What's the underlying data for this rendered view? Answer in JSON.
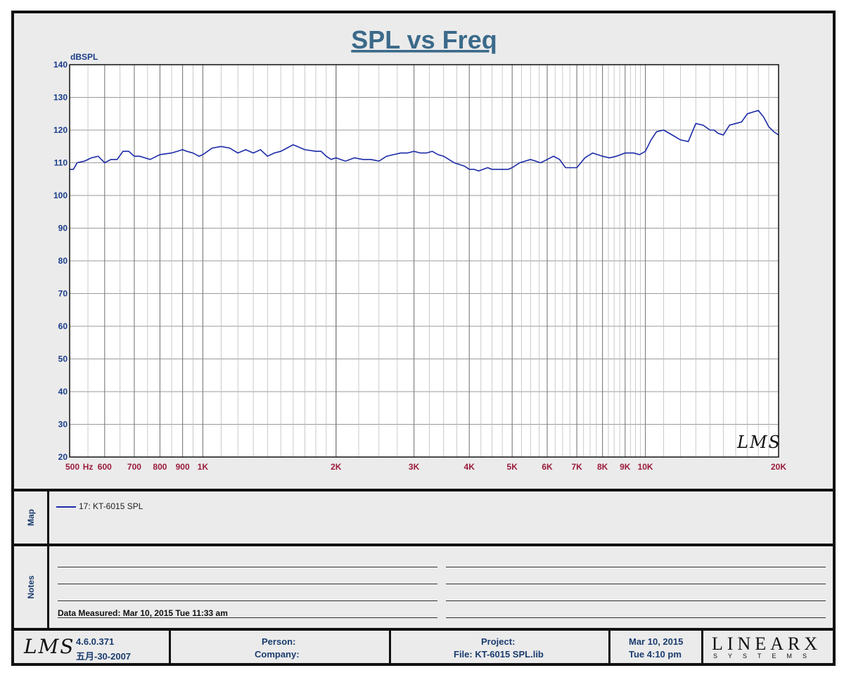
{
  "chart_data": {
    "type": "line",
    "title": "SPL vs Freq",
    "ylabel": "dBSPL",
    "xlabel": "",
    "x_scale": "log",
    "xlim": [
      500,
      20000
    ],
    "ylim": [
      20,
      140
    ],
    "y_ticks": [
      "140",
      "130",
      "120",
      "110",
      "100",
      "90",
      "80",
      "70",
      "60",
      "50",
      "40",
      "30",
      "20"
    ],
    "x_ticks": [
      {
        "label": "500",
        "value": 500
      },
      {
        "label": "Hz",
        "value": 550
      },
      {
        "label": "600",
        "value": 600
      },
      {
        "label": "700",
        "value": 700
      },
      {
        "label": "800",
        "value": 800
      },
      {
        "label": "900",
        "value": 900
      },
      {
        "label": "1K",
        "value": 1000
      },
      {
        "label": "2K",
        "value": 2000
      },
      {
        "label": "3K",
        "value": 3000
      },
      {
        "label": "4K",
        "value": 4000
      },
      {
        "label": "5K",
        "value": 5000
      },
      {
        "label": "6K",
        "value": 6000
      },
      {
        "label": "7K",
        "value": 7000
      },
      {
        "label": "8K",
        "value": 8000
      },
      {
        "label": "9K",
        "value": 9000
      },
      {
        "label": "10K",
        "value": 10000
      },
      {
        "label": "20K",
        "value": 20000
      }
    ],
    "grid": true,
    "series": [
      {
        "name": "17: KT-6015   SPL",
        "color": "#1c2aa8",
        "x": [
          500,
          510,
          520,
          540,
          560,
          580,
          600,
          620,
          640,
          660,
          680,
          700,
          720,
          760,
          800,
          850,
          900,
          920,
          950,
          980,
          1000,
          1050,
          1100,
          1150,
          1200,
          1250,
          1300,
          1350,
          1400,
          1450,
          1500,
          1600,
          1700,
          1800,
          1850,
          1900,
          1950,
          2000,
          2100,
          2200,
          2300,
          2400,
          2500,
          2600,
          2700,
          2800,
          2900,
          3000,
          3100,
          3200,
          3300,
          3400,
          3500,
          3700,
          3900,
          4000,
          4100,
          4200,
          4300,
          4400,
          4500,
          4700,
          4900,
          5000,
          5200,
          5500,
          5800,
          6000,
          6200,
          6400,
          6600,
          6800,
          7000,
          7300,
          7600,
          7800,
          8000,
          8300,
          8600,
          9000,
          9400,
          9700,
          10000,
          10300,
          10600,
          11000,
          11500,
          12000,
          12500,
          13000,
          13500,
          14000,
          14300,
          14600,
          15000,
          15500,
          16000,
          16500,
          17000,
          17500,
          18000,
          18500,
          19000,
          19500,
          20000
        ],
        "y": [
          108,
          108,
          110,
          110.5,
          111.5,
          112,
          110,
          111,
          111,
          113.5,
          113.5,
          112,
          112,
          111,
          112.5,
          113,
          114,
          113.5,
          113,
          112,
          112.5,
          114.5,
          115,
          114.5,
          113,
          114,
          113,
          114,
          112,
          113,
          113.5,
          115.5,
          114,
          113.5,
          113.5,
          112,
          111,
          111.5,
          110.5,
          111.5,
          111,
          111,
          110.5,
          112,
          112.5,
          113,
          113,
          113.5,
          113,
          113,
          113.5,
          112.5,
          112,
          110,
          109,
          108,
          108,
          107.5,
          108,
          108.5,
          108,
          108,
          108,
          108.5,
          110,
          111,
          110,
          111,
          112,
          111,
          108.5,
          108.5,
          108.5,
          111.5,
          113,
          112.5,
          112,
          111.5,
          112,
          113,
          113,
          112.5,
          113.5,
          117,
          119.5,
          120,
          118.5,
          117,
          116.5,
          122,
          121.5,
          120,
          120,
          119,
          118.5,
          121.5,
          122,
          122.5,
          125,
          125.5,
          126,
          124,
          121,
          119.5,
          118.5
        ]
      }
    ]
  },
  "map": {
    "label": "Map",
    "legend_entry": "17: KT-6015   SPL"
  },
  "notes": {
    "label": "Notes",
    "data_measured": "Data Measured: Mar 10, 2015  Tue 11:33 am"
  },
  "footer": {
    "lms_logo": "LMS",
    "version": "4.6.0.371",
    "build_date": "五月-30-2007",
    "person": "Person:",
    "company": "Company:",
    "project": "Project:",
    "file": "File: KT-6015  SPL.lib",
    "date": "Mar 10, 2015",
    "time": "Tue  4:10 pm",
    "brand_main": "LINEARX",
    "brand_sub": "SYSTEMS"
  },
  "watermark": "LMS",
  "colors": {
    "title": "#3b6a8a",
    "axis_text_y": "#1a3c8a",
    "axis_text_x": "#9b1b3c",
    "curve": "#1c2aa8",
    "grid": "#9a9a9a"
  }
}
